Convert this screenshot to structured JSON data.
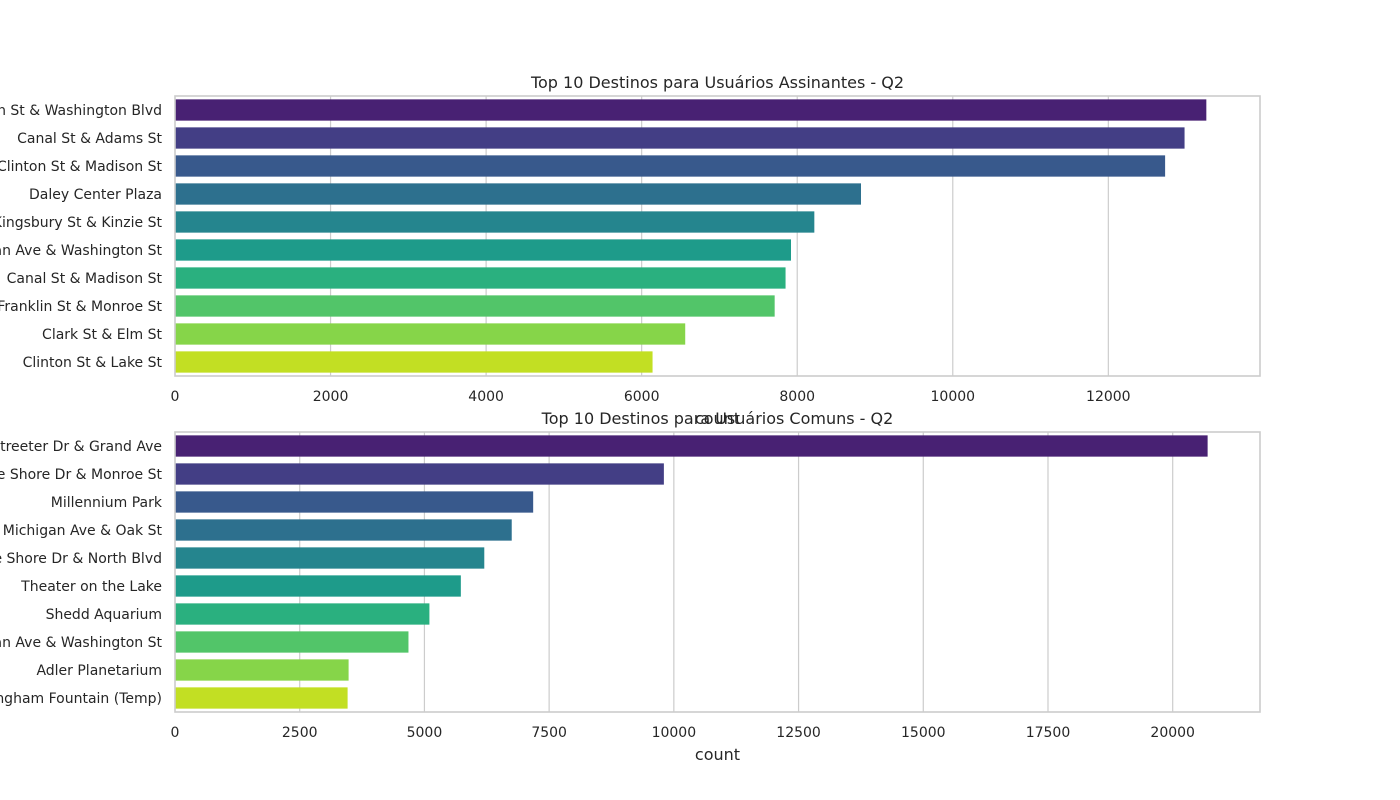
{
  "chart_data": [
    {
      "type": "bar",
      "orientation": "horizontal",
      "title": "Top 10 Destinos para Usuários Assinantes - Q2",
      "xlabel": "",
      "ylabel": "",
      "xlim": [
        0,
        13950
      ],
      "xticks": [
        0,
        2000,
        4000,
        6000,
        8000,
        10000,
        12000
      ],
      "grid": true,
      "categories": [
        "Clinton St & Washington Blvd",
        "Canal St & Adams St",
        "Clinton St & Madison St",
        "Daley Center Plaza",
        "Kingsbury St & Kinzie St",
        "Michigan Ave & Washington St",
        "Canal St & Madison St",
        "Franklin St & Monroe St",
        "Clark St & Elm St",
        "Clinton St & Lake St"
      ],
      "values": [
        13260,
        12980,
        12730,
        8820,
        8220,
        7920,
        7850,
        7710,
        6560,
        6140
      ]
    },
    {
      "type": "bar",
      "orientation": "horizontal",
      "title": "Top 10 Destinos para Usuários Comuns - Q2",
      "xlabel": "count",
      "ylabel": "",
      "xlim": [
        0,
        21750
      ],
      "xticks": [
        0,
        2500,
        5000,
        7500,
        10000,
        12500,
        15000,
        17500,
        20000
      ],
      "grid": true,
      "categories": [
        "Streeter Dr & Grand Ave",
        "Lake Shore Dr & Monroe St",
        "Millennium Park",
        "Michigan Ave & Oak St",
        "Lake Shore Dr & North Blvd",
        "Theater on the Lake",
        "Shedd Aquarium",
        "Michigan Ave & Washington St",
        "Adler Planetarium",
        "Buckingham Fountain (Temp)"
      ],
      "values": [
        20700,
        9800,
        7180,
        6750,
        6200,
        5730,
        5100,
        4680,
        3480,
        3460
      ]
    }
  ],
  "palette": [
    "#482173",
    "#433e85",
    "#38598c",
    "#2d708e",
    "#25858e",
    "#1e9b8a",
    "#2ab07f",
    "#52c569",
    "#86d549",
    "#c2df23"
  ]
}
